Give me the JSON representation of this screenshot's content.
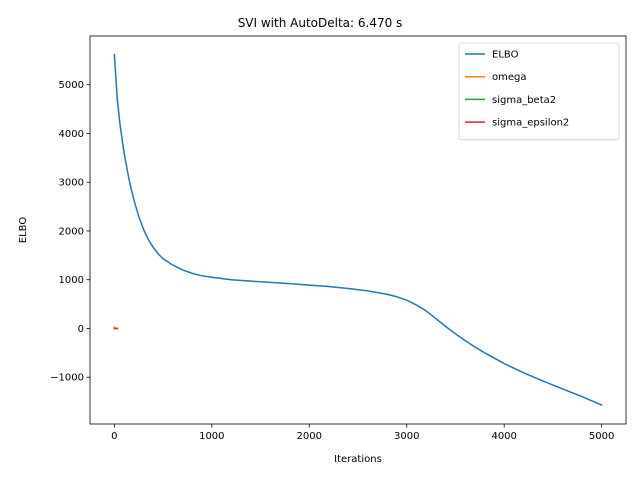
{
  "chart_data": {
    "type": "line",
    "title": "SVI with AutoDelta: 6.470 s",
    "xlabel": "Iterations",
    "ylabel": "ELBO",
    "xlim": [
      -250,
      5250
    ],
    "ylim": [
      -1960,
      6000
    ],
    "xticks": [
      0,
      1000,
      2000,
      3000,
      4000,
      5000
    ],
    "xtick_labels": [
      "0",
      "1000",
      "2000",
      "3000",
      "4000",
      "5000"
    ],
    "yticks": [
      -1000,
      0,
      1000,
      2000,
      3000,
      4000,
      5000
    ],
    "ytick_labels": [
      "−1000",
      "0",
      "1000",
      "2000",
      "3000",
      "4000",
      "5000"
    ],
    "grid": false,
    "legend_position": "top-right",
    "series": [
      {
        "name": "ELBO",
        "color": "#1f77b4",
        "x": [
          0,
          30,
          60,
          100,
          150,
          200,
          250,
          300,
          350,
          400,
          450,
          500,
          600,
          700,
          800,
          900,
          1000,
          1200,
          1400,
          1600,
          1800,
          2000,
          2200,
          2400,
          2600,
          2800,
          2900,
          3000,
          3100,
          3200,
          3300,
          3400,
          3500,
          3600,
          3700,
          3800,
          3900,
          4000,
          4200,
          4400,
          4600,
          4800,
          5000
        ],
        "y": [
          5620,
          4700,
          4150,
          3600,
          3060,
          2640,
          2300,
          2030,
          1820,
          1660,
          1530,
          1430,
          1300,
          1200,
          1130,
          1080,
          1050,
          1000,
          970,
          945,
          920,
          890,
          860,
          820,
          770,
          700,
          650,
          580,
          480,
          360,
          200,
          40,
          -110,
          -250,
          -380,
          -500,
          -610,
          -720,
          -910,
          -1080,
          -1240,
          -1400,
          -1570
        ]
      },
      {
        "name": "omega",
        "color": "#ff7f0e",
        "x": [
          0,
          5,
          10,
          15,
          20,
          25,
          30
        ],
        "y": [
          30,
          8,
          2,
          0,
          0,
          0,
          0
        ]
      },
      {
        "name": "sigma_beta2",
        "color": "#2ca02c",
        "x": [
          0,
          10,
          20,
          30
        ],
        "y": [
          1,
          1,
          1,
          1
        ]
      },
      {
        "name": "sigma_epsilon2",
        "color": "#d62728",
        "x": [
          0,
          10,
          20,
          30
        ],
        "y": [
          1,
          1,
          1,
          1
        ]
      }
    ]
  }
}
